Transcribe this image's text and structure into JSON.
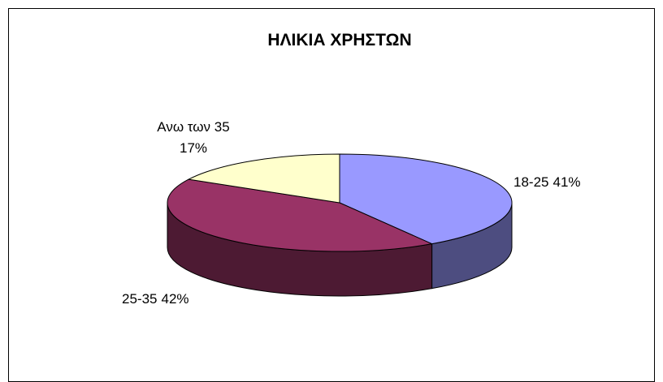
{
  "chart_data": {
    "type": "pie",
    "title": "ΗΛΙΚΙΑ ΧΡΗΣΤΩΝ",
    "categories": [
      "18-25",
      "25-35",
      "Ανω των 35"
    ],
    "values": [
      41,
      42,
      17
    ],
    "value_labels": [
      "41%",
      "42%",
      "17%"
    ],
    "colors": [
      "#9999ff",
      "#993366",
      "#ffffcc"
    ]
  }
}
